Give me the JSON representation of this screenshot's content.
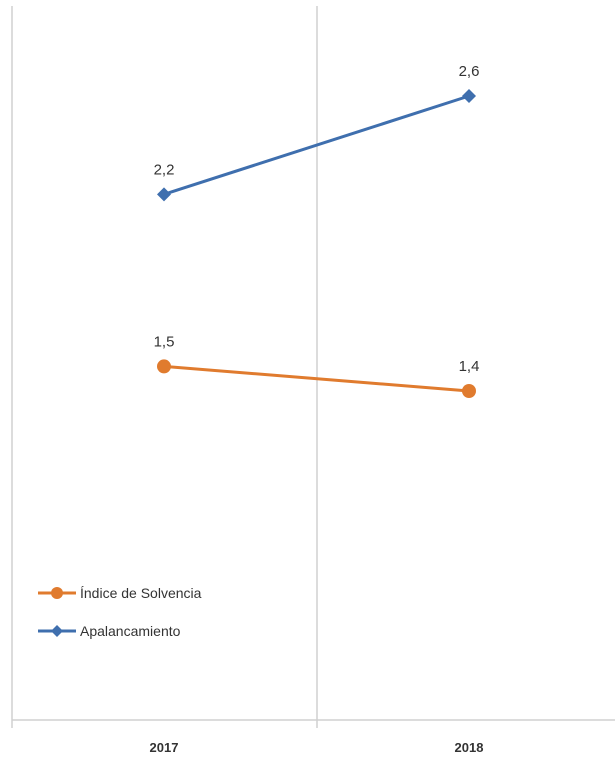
{
  "chart_data": {
    "type": "line",
    "categories": [
      "2017",
      "2018"
    ],
    "series": [
      {
        "name": "Índice de Solvencia",
        "values": [
          1.5,
          1.4
        ],
        "labels": [
          "1,5",
          "1,4"
        ],
        "color": "#E07B2E",
        "marker": "circle"
      },
      {
        "name": "Apalancamiento",
        "values": [
          2.2,
          2.6
        ],
        "labels": [
          "2,2",
          "2,6"
        ],
        "color": "#3F6FAE",
        "marker": "diamond"
      }
    ],
    "grid": false,
    "legend_position": "bottom-left",
    "axis_color": "#D0D0D0"
  }
}
